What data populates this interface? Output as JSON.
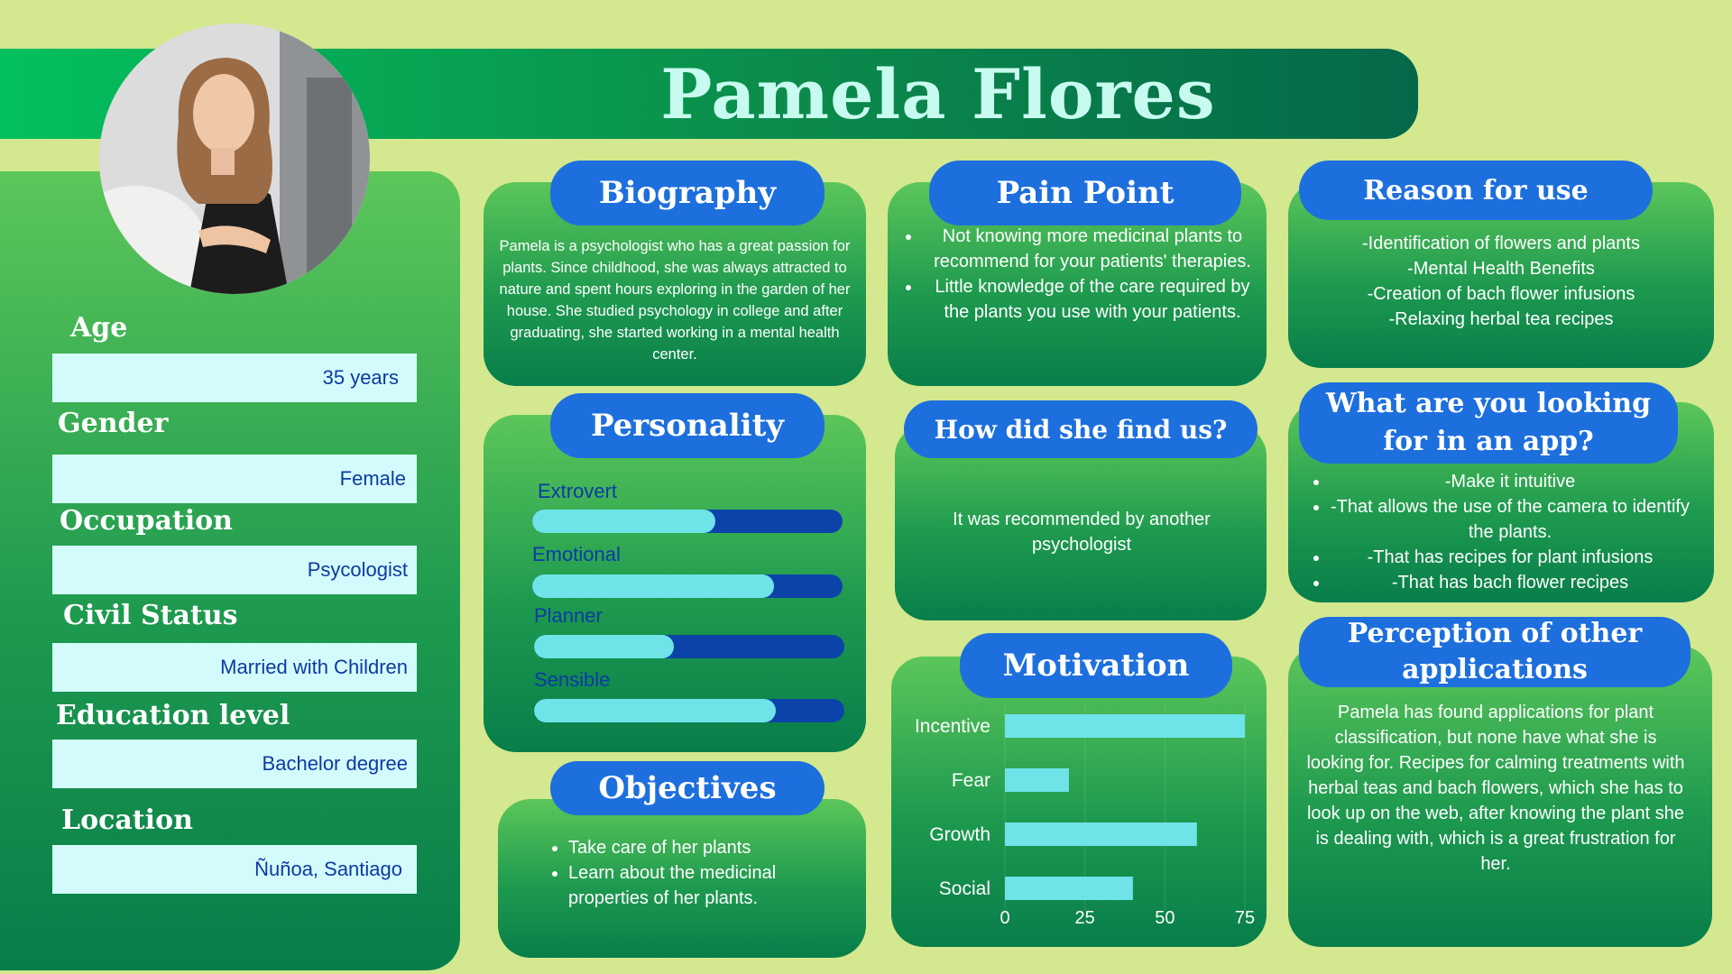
{
  "name": "Pamela Flores",
  "profile": [
    {
      "label": "Age",
      "value": "35 years"
    },
    {
      "label": "Gender",
      "value": "Female"
    },
    {
      "label": "Occupation",
      "value": "Psycologist"
    },
    {
      "label": "Civil Status",
      "value": "Married with Children"
    },
    {
      "label": "Education level",
      "value": "Bachelor degree"
    },
    {
      "label": "Location",
      "value": "Ñuñoa, Santiago"
    }
  ],
  "biography": {
    "title": "Biography",
    "text": "Pamela is a psychologist who has a great passion for plants. Since childhood, she was always attracted to nature and spent hours exploring in the garden of her house. She studied psychology in college and after graduating, she started working in a mental health center."
  },
  "personality": {
    "title": "Personality",
    "traits": [
      {
        "label": "Extrovert",
        "level": 0.59
      },
      {
        "label": "Emotional",
        "level": 0.78
      },
      {
        "label": "Planner",
        "level": 0.45
      },
      {
        "label": "Sensible",
        "level": 0.78
      }
    ]
  },
  "objectives": {
    "title": "Objectives",
    "items": [
      "Take care of her plants",
      "Learn about the medicinal properties of her plants."
    ]
  },
  "pain_point": {
    "title": "Pain Point",
    "items": [
      "Not knowing more medicinal plants to recommend for your patients' therapies.",
      "Little knowledge of the care required by the plants you use with your patients."
    ]
  },
  "find_us": {
    "title": "How did she find us?",
    "text": "It was recommended by another psychologist"
  },
  "motivation": {
    "title": "Motivation"
  },
  "chart_data": {
    "type": "bar",
    "orientation": "horizontal",
    "categories": [
      "Incentive",
      "Fear",
      "Growth",
      "Social"
    ],
    "values": [
      75,
      20,
      60,
      40
    ],
    "xticks": [
      "0",
      "25",
      "50",
      "75"
    ],
    "xlim": [
      0,
      75
    ],
    "bar_color": "#6ee4e8"
  },
  "reason_for_use": {
    "title": "Reason for use",
    "items": [
      "-Identification of flowers and plants",
      "-Mental Health Benefits",
      "-Creation of bach flower infusions",
      "-Relaxing herbal tea recipes"
    ]
  },
  "looking_for": {
    "title": "What are you looking for in an app?",
    "items": [
      "-Make it intuitive",
      "-That allows the use of the camera to identify the plants.",
      "-That has recipes for plant infusions",
      "-That has bach flower recipes"
    ]
  },
  "perception": {
    "title": "Perception of other applications",
    "text": "Pamela has found applications for plant classification, but none have what she is looking for. Recipes for calming treatments with herbal teas and bach flowers, which she has to look up on the web, after knowing the plant she is dealing with, which is a great frustration for her."
  },
  "colors": {
    "background": "#d3e88f",
    "pill": "#1d6fdd",
    "field_box": "#d4fbfb",
    "bar_fill": "#6ee4e8",
    "bar_track": "#0c43a8",
    "title_text": "#c8fbf0"
  }
}
